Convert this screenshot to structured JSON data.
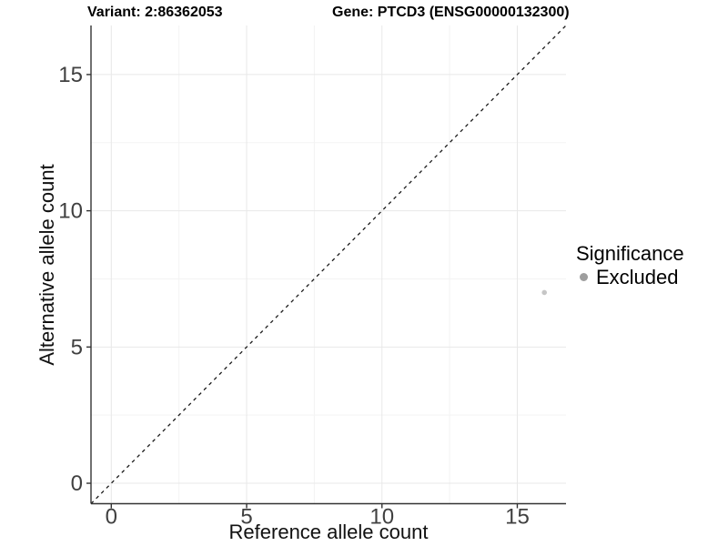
{
  "chart_data": {
    "type": "scatter",
    "title_left": "Variant: 2:86362053",
    "title_right": "Gene: PTCD3 (ENSG00000132300)",
    "xlabel": "Reference allele count",
    "ylabel": "Alternative allele count",
    "xlim": [
      -0.75,
      16.8
    ],
    "ylim": [
      -0.75,
      16.8
    ],
    "x_ticks": [
      0,
      5,
      10,
      15
    ],
    "y_ticks": [
      0,
      5,
      10,
      15
    ],
    "x_minor_ticks": [
      2.5,
      7.5,
      12.5
    ],
    "y_minor_ticks": [
      2.5,
      7.5,
      12.5
    ],
    "grid": "major+minor",
    "reference_line": {
      "style": "dashed",
      "slope": 1,
      "intercept": 0
    },
    "points": [
      {
        "x": 16,
        "y": 7,
        "series": "Excluded"
      }
    ],
    "legend": {
      "title": "Significance",
      "position": "right",
      "items": [
        {
          "label": "Excluded",
          "color": "#9e9e9e"
        }
      ]
    },
    "colors": {
      "grid_major": "#e8e8e8",
      "grid_minor": "#f3f3f3",
      "axis_line": "#333333",
      "tick_label": "#404040",
      "point": "#c6c6c6",
      "reference_line": "#1a1a1a",
      "title_text": "#000000",
      "axis_label_text": "#111111"
    }
  }
}
